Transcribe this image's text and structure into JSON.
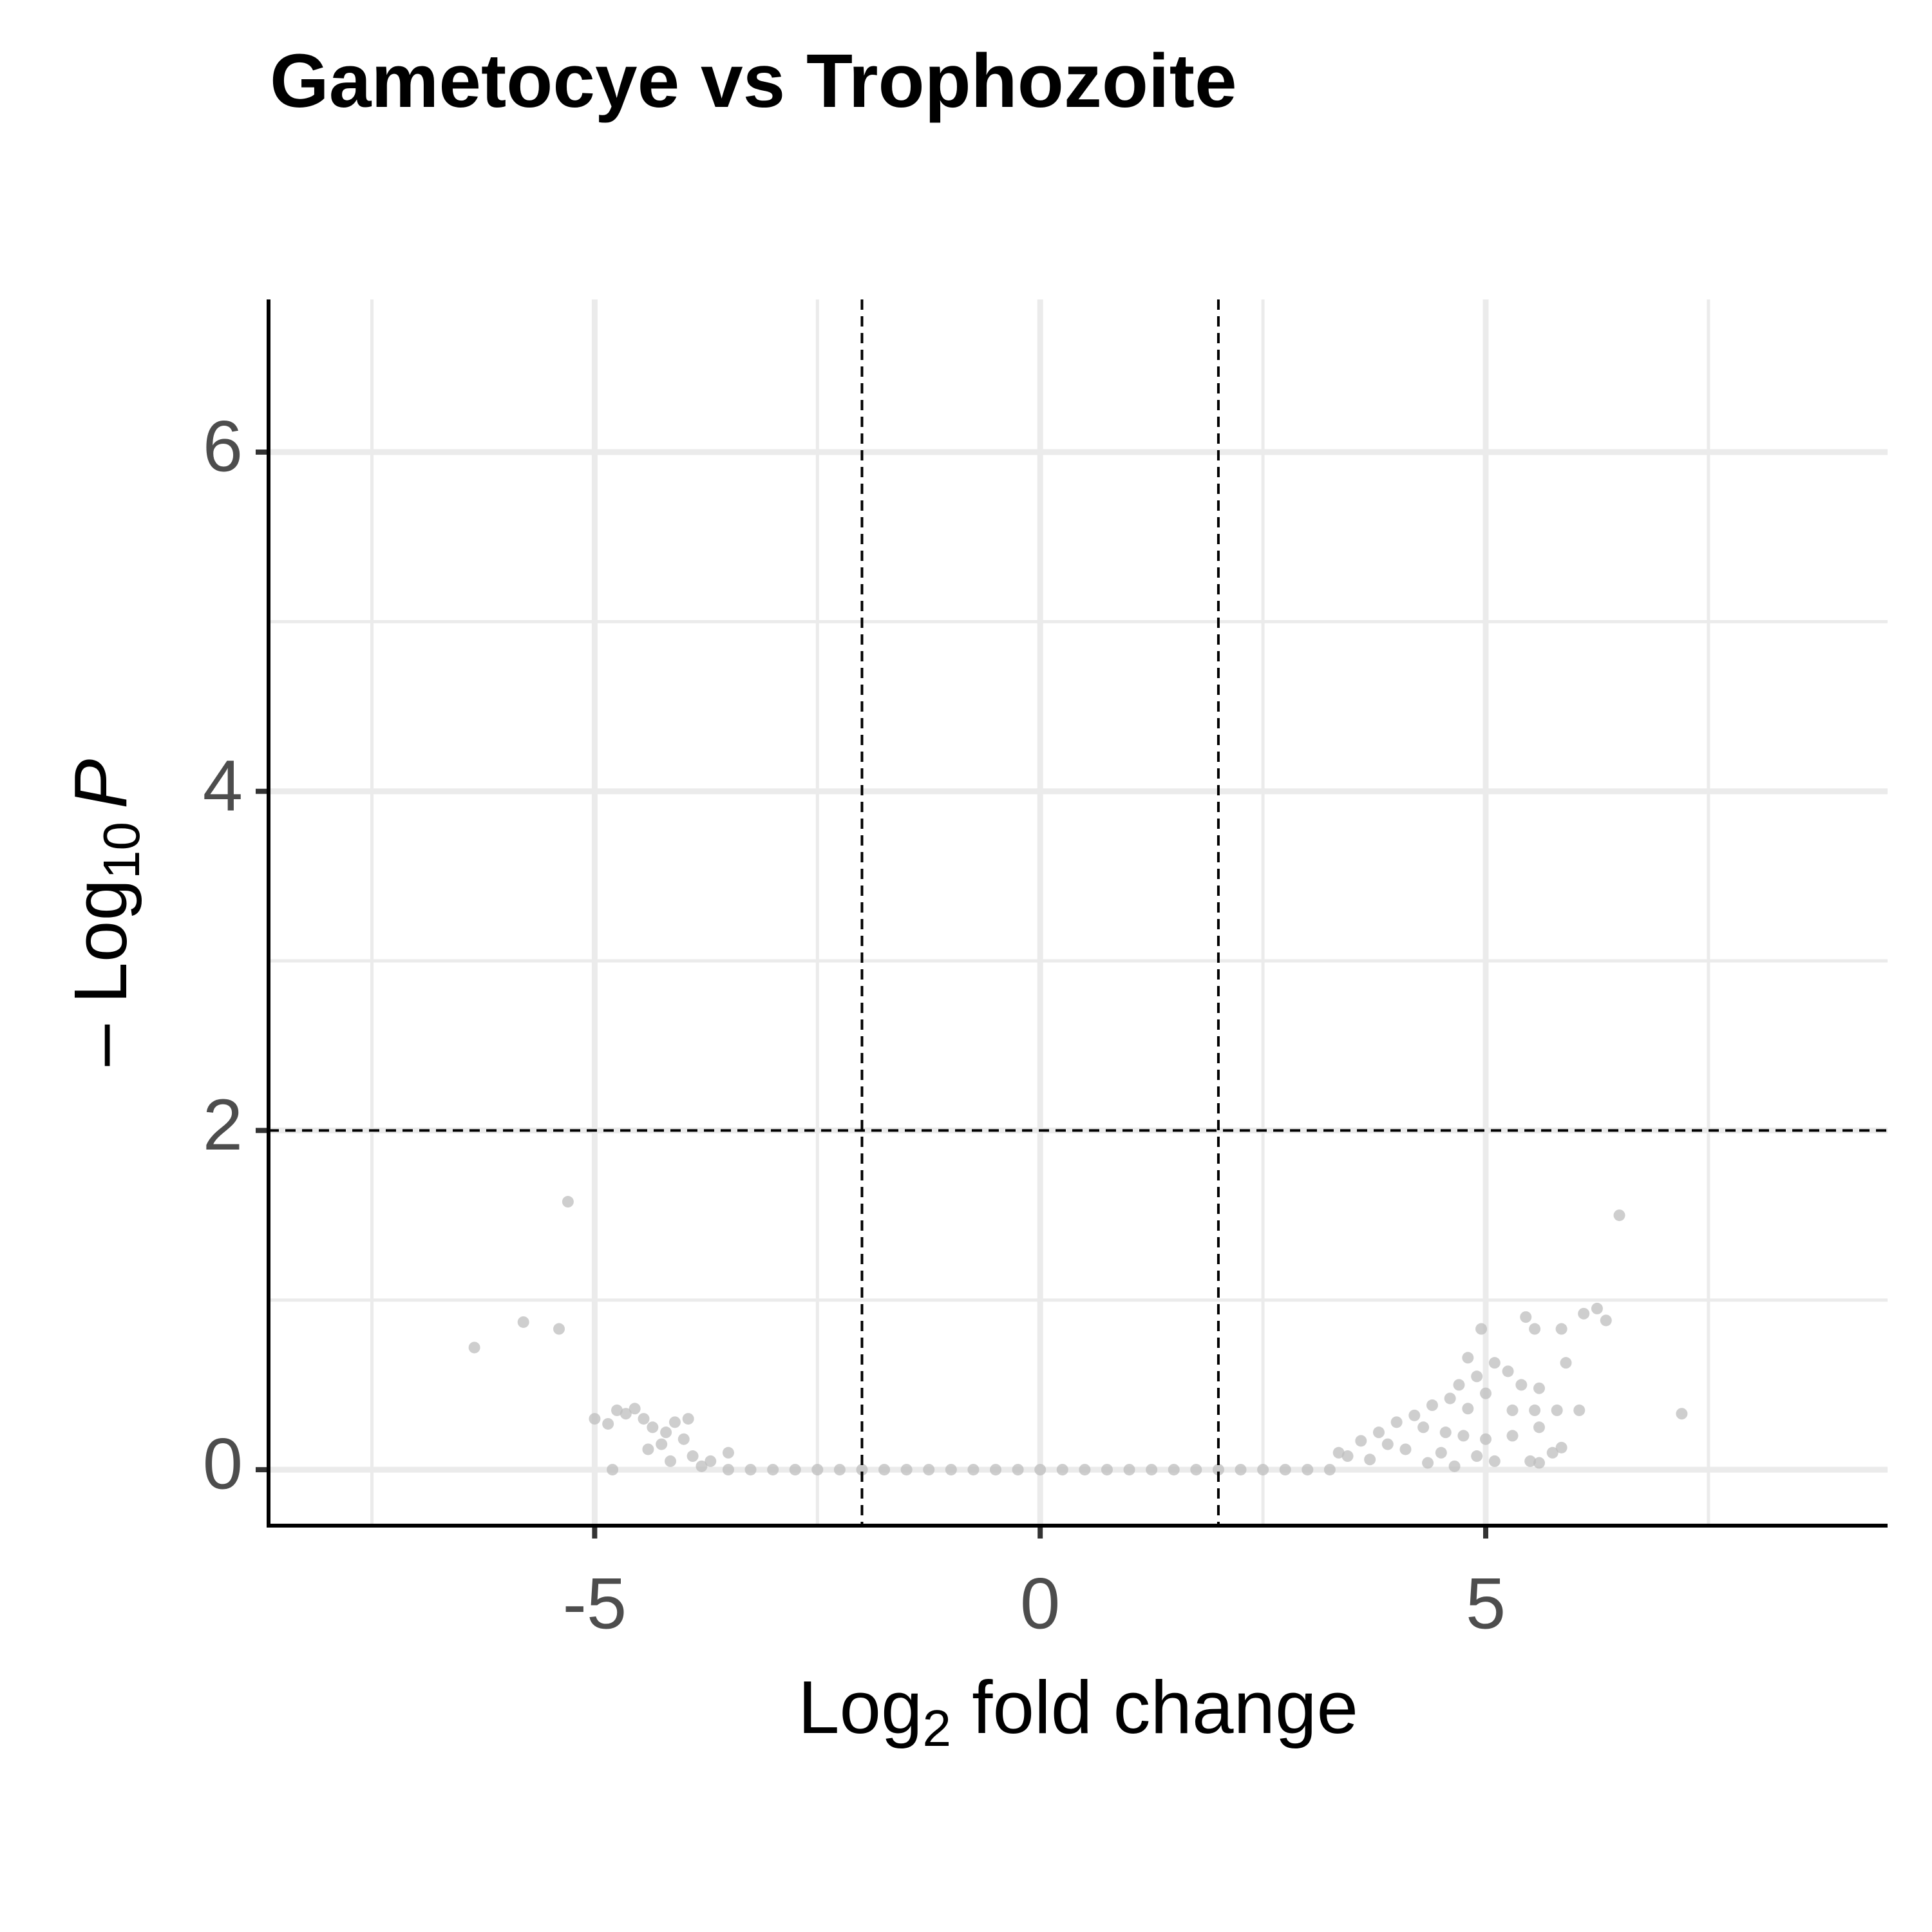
{
  "chart_data": {
    "type": "scatter",
    "title": "Gametocye vs Trophozoite",
    "xlabel": [
      "Log",
      "2",
      " fold change"
    ],
    "ylabel": [
      "– Log",
      "10",
      "P"
    ],
    "xlim": [
      -8.66,
      9.51
    ],
    "ylim": [
      -0.33,
      6.9
    ],
    "xticks": [
      -5,
      0,
      5
    ],
    "yticks": [
      0,
      2,
      4,
      6
    ],
    "grid": true,
    "vlines": [
      -2,
      2
    ],
    "hlines": [
      2
    ],
    "color": "#bdbdbd",
    "x": [
      -5.3,
      -5.8,
      -5.4,
      -6.35,
      -5.0,
      -4.85,
      -4.75,
      -4.65,
      -4.55,
      -4.45,
      -4.35,
      -4.2,
      -4.1,
      -3.95,
      -4.0,
      -4.25,
      -4.4,
      -4.8,
      -4.15,
      -3.9,
      -3.7,
      -3.5,
      -3.8,
      -3.5,
      -3.25,
      -3.0,
      -2.75,
      -2.5,
      -2.25,
      -2.0,
      -1.75,
      -1.5,
      -1.25,
      -1.0,
      -0.75,
      -0.5,
      -0.25,
      0.0,
      0.25,
      0.5,
      0.75,
      1.0,
      1.25,
      1.5,
      1.75,
      2.0,
      2.25,
      2.5,
      2.75,
      3.0,
      3.25,
      6.5,
      7.2,
      6.25,
      6.1,
      6.35,
      5.85,
      5.9,
      5.45,
      5.55,
      4.95,
      4.8,
      5.1,
      5.25,
      4.9,
      4.7,
      5.4,
      5.6,
      5.0,
      4.6,
      4.4,
      4.8,
      5.3,
      5.55,
      5.8,
      6.05,
      4.2,
      4.0,
      4.3,
      4.55,
      4.75,
      5.0,
      5.3,
      5.6,
      3.8,
      3.6,
      3.9,
      4.1,
      4.5,
      4.9,
      5.1,
      5.5,
      5.75,
      5.85,
      3.35,
      3.45,
      3.7,
      4.35,
      4.65,
      5.6
    ],
    "y": [
      1.58,
      0.87,
      0.83,
      0.72,
      0.3,
      0.27,
      0.35,
      0.33,
      0.36,
      0.3,
      0.25,
      0.22,
      0.28,
      0.3,
      0.18,
      0.15,
      0.12,
      0.0,
      0.05,
      0.08,
      0.05,
      0.1,
      0.02,
      0,
      0,
      0,
      0,
      0,
      0,
      0,
      0,
      0,
      0,
      0,
      0,
      0,
      0,
      0,
      0,
      0,
      0,
      0,
      0,
      0,
      0,
      0,
      0,
      0,
      0,
      0,
      0,
      1.5,
      0.33,
      0.95,
      0.92,
      0.88,
      0.83,
      0.63,
      0.9,
      0.83,
      0.83,
      0.66,
      0.63,
      0.58,
      0.55,
      0.5,
      0.5,
      0.48,
      0.45,
      0.42,
      0.38,
      0.36,
      0.35,
      0.35,
      0.35,
      0.35,
      0.32,
      0.28,
      0.25,
      0.22,
      0.2,
      0.18,
      0.2,
      0.25,
      0.22,
      0.17,
      0.15,
      0.12,
      0.1,
      0.08,
      0.05,
      0.05,
      0.1,
      0.13,
      0.1,
      0.08,
      0.06,
      0.04,
      0.02,
      0.04
    ]
  }
}
